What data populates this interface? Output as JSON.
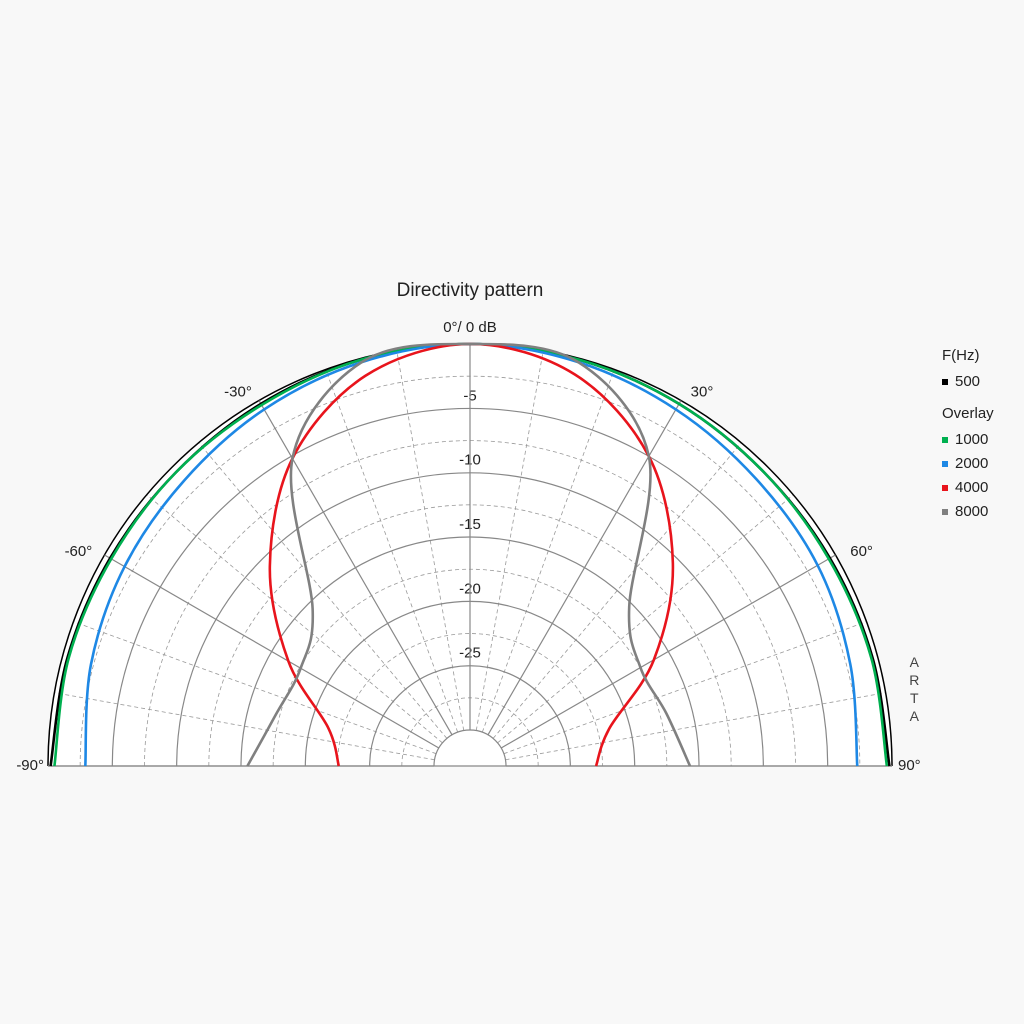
{
  "chart_data": {
    "type": "polar",
    "title": "Directivity pattern",
    "theta": [
      -90,
      -75,
      -60,
      -45,
      -30,
      -15,
      0,
      15,
      30,
      45,
      60,
      75,
      90
    ],
    "rlim": [
      -30,
      0
    ],
    "rticks": [
      {
        "value": 0,
        "label": "0°/ 0 dB"
      },
      -5,
      -10,
      -15,
      -20,
      -25
    ],
    "thetaticks": [
      {
        "value": -90,
        "label": "-90°"
      },
      {
        "value": -60,
        "label": "-60°"
      },
      {
        "value": -30,
        "label": "-30°"
      },
      {
        "value": 30,
        "label": "30°"
      },
      {
        "value": 60,
        "label": "60°"
      },
      {
        "value": 90,
        "label": "90°"
      }
    ],
    "legend_title": "F(Hz)",
    "legend_group": "Overlay",
    "watermark": "ARTA",
    "series": [
      {
        "name": "500",
        "color": "#000000",
        "values": [
          -0.2,
          -0.4,
          -0.5,
          -0.5,
          -0.3,
          -0.1,
          0,
          -0.1,
          -0.3,
          -0.5,
          -0.5,
          -0.4,
          -0.2
        ]
      },
      {
        "name": "1000",
        "color": "#00b050",
        "values": [
          -0.5,
          -0.5,
          -0.6,
          -0.5,
          -0.4,
          -0.1,
          0,
          -0.1,
          -0.3,
          -0.5,
          -0.6,
          -0.5,
          -0.4
        ]
      },
      {
        "name": "2000",
        "color": "#1e88e5",
        "values": [
          -2.9,
          -2.3,
          -1.8,
          -1.4,
          -0.8,
          -0.3,
          0,
          -0.3,
          -0.8,
          -1.3,
          -1.6,
          -2.2,
          -2.7
        ]
      },
      {
        "name": "4000",
        "color": "#e8141c",
        "values": [
          -22.6,
          -21.4,
          -16.5,
          -10.8,
          -5.2,
          -1.4,
          0,
          -1.3,
          -5,
          -10.5,
          -16.3,
          -21.6,
          -23
        ]
      },
      {
        "name": "8000",
        "color": "#808080",
        "values": [
          -15.5,
          -17.2,
          -17.6,
          -15.5,
          -5.2,
          -0.3,
          0,
          -0.3,
          -5,
          -15.3,
          -17.5,
          -17,
          -15.7
        ]
      }
    ]
  }
}
